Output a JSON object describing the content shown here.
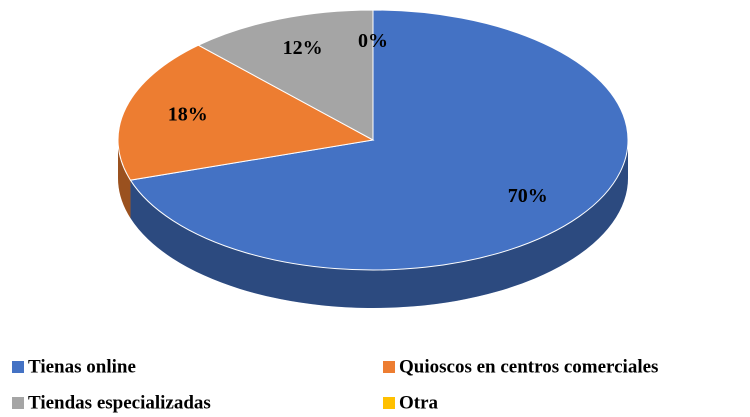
{
  "chart_data": {
    "type": "pie",
    "categories": [
      "Tienas online",
      "Quioscos en centros comerciales",
      "Tiendas especializadas",
      "Otra"
    ],
    "values": [
      70,
      18,
      12,
      0
    ],
    "value_labels": [
      "70%",
      "18%",
      "12%",
      "0%"
    ],
    "colors": [
      "#4472c4",
      "#ed7d31",
      "#a5a5a5",
      "#ffc000"
    ],
    "legend": "bottom"
  }
}
